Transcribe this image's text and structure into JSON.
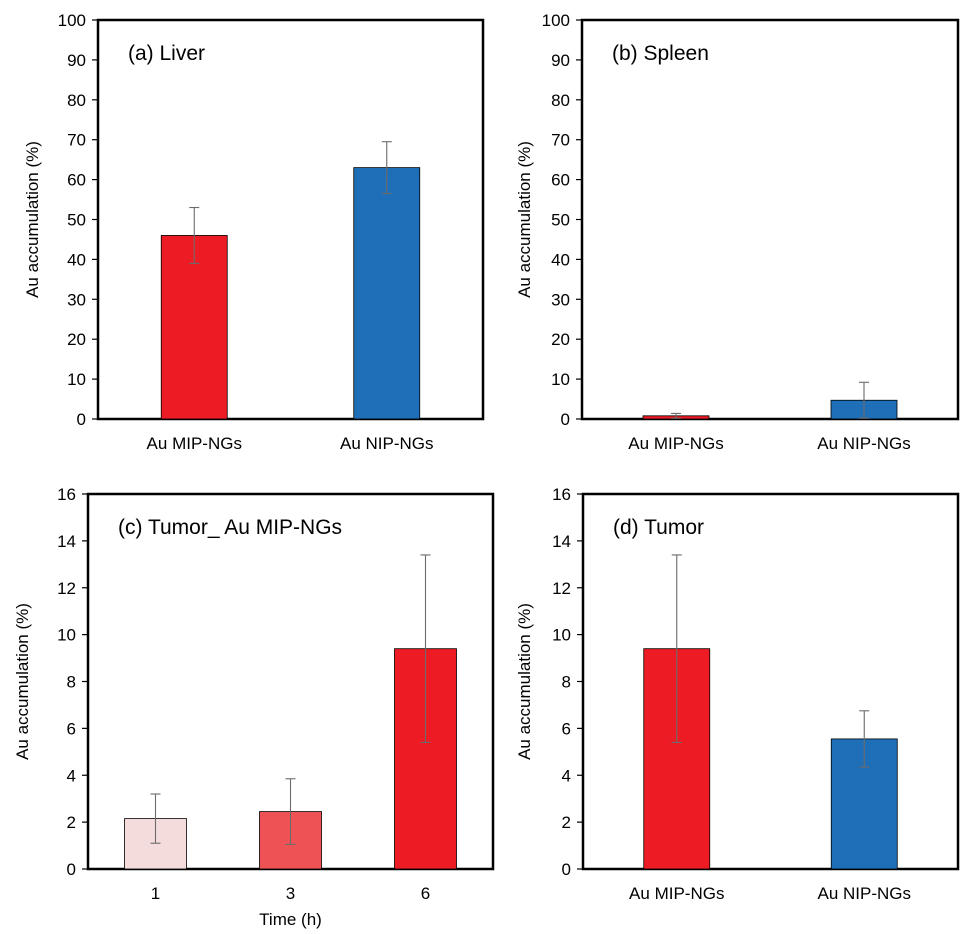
{
  "chart_data": [
    {
      "type": "bar",
      "title": "(a) Liver",
      "ylabel": "Au accumulation (%)",
      "xlabel": "",
      "ylim": [
        0,
        100
      ],
      "yticks": [
        0,
        10,
        20,
        30,
        40,
        50,
        60,
        70,
        80,
        90,
        100
      ],
      "categories": [
        "Au MIP-NGs",
        "Au NIP-NGs"
      ],
      "values": [
        46,
        63
      ],
      "errors": [
        7,
        6.5
      ],
      "colors": [
        "#ed1c24",
        "#1f6fb8"
      ]
    },
    {
      "type": "bar",
      "title": "(b) Spleen",
      "ylabel": "Au accumulation (%)",
      "xlabel": "",
      "ylim": [
        0,
        100
      ],
      "yticks": [
        0,
        10,
        20,
        30,
        40,
        50,
        60,
        70,
        80,
        90,
        100
      ],
      "categories": [
        "Au MIP-NGs",
        "Au NIP-NGs"
      ],
      "values": [
        0.8,
        4.7
      ],
      "errors": [
        0.6,
        4.5
      ],
      "colors": [
        "#ed1c24",
        "#1f6fb8"
      ]
    },
    {
      "type": "bar",
      "title": "(c) Tumor_ Au MIP-NGs",
      "ylabel": "Au accumulation (%)",
      "xlabel": "Time (h)",
      "ylim": [
        0,
        16
      ],
      "yticks": [
        0,
        2,
        4,
        6,
        8,
        10,
        12,
        14,
        16
      ],
      "categories": [
        "1",
        "3",
        "6"
      ],
      "values": [
        2.15,
        2.45,
        9.4
      ],
      "errors": [
        1.05,
        1.4,
        4.0
      ],
      "colors": [
        "#f5dcdc",
        "#ef5254",
        "#ed1c24"
      ]
    },
    {
      "type": "bar",
      "title": "(d) Tumor",
      "ylabel": "Au accumulation (%)",
      "xlabel": "",
      "ylim": [
        0,
        16
      ],
      "yticks": [
        0,
        2,
        4,
        6,
        8,
        10,
        12,
        14,
        16
      ],
      "categories": [
        "Au MIP-NGs",
        "Au NIP-NGs"
      ],
      "values": [
        9.4,
        5.55
      ],
      "errors": [
        4.0,
        1.2
      ],
      "colors": [
        "#ed1c24",
        "#1f6fb8"
      ]
    }
  ]
}
